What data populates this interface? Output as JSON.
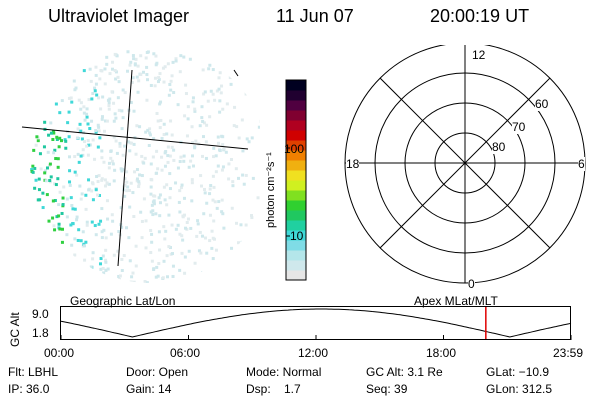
{
  "header": {
    "instrument": "Ultraviolet Imager",
    "date": "11 Jun 07",
    "time": "20:00:19 UT"
  },
  "colorbar": {
    "unit_label": "photon cm⁻²s⁻¹",
    "ticks": [
      "100",
      "10"
    ],
    "colors": [
      "#e6e6e6",
      "#cfe8ec",
      "#b4e6ea",
      "#7fdce6",
      "#40d8d8",
      "#20d0a0",
      "#20c860",
      "#30d030",
      "#80e020",
      "#d0f020",
      "#f0e020",
      "#f0b010",
      "#f08000",
      "#e04000",
      "#d00000",
      "#b00020",
      "#800030",
      "#500040",
      "#200030",
      "#000020"
    ]
  },
  "polar_plot": {
    "top_label": "12",
    "bottom_label": "0",
    "left_label": "18",
    "right_label": "6",
    "ring_labels": [
      "60",
      "70",
      "80"
    ]
  },
  "timeline": {
    "left_title": "Geographic Lat/Lon",
    "right_title": "Apex MLat/MLT",
    "axis_label": "GC Alt",
    "y_ticks": [
      "9.0",
      "1.8"
    ],
    "x_ticks": [
      "00:00",
      "06:00",
      "12:00",
      "18:00",
      "23:59"
    ],
    "marker_time_fraction": 0.833
  },
  "footer": {
    "row1": [
      "Flt: LBHL",
      "Door: Open",
      "Mode: Normal",
      "GC Alt: 3.1 Re",
      "GLat: −10.9"
    ],
    "row2": [
      "IP: 36.0",
      "Gain: 14",
      "Dsp:    1.7",
      "Seq: 39",
      "GLon: 312.5"
    ]
  }
}
